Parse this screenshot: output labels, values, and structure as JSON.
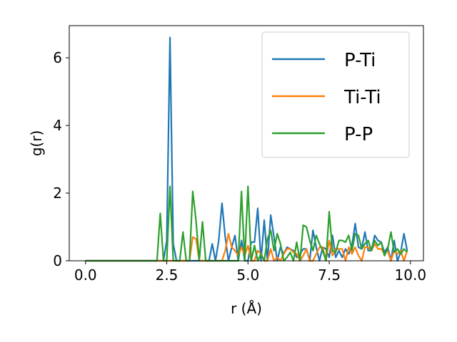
{
  "chart_data": {
    "type": "line",
    "xlabel": "r (Å)",
    "ylabel": "g(r)",
    "xlim": [
      -0.5,
      10.4
    ],
    "ylim": [
      0,
      6.95
    ],
    "xticks": [
      0.0,
      2.5,
      5.0,
      7.5,
      10.0
    ],
    "xtick_labels": [
      "0.0",
      "2.5",
      "5.0",
      "7.5",
      "10.0"
    ],
    "yticks": [
      0,
      2,
      4,
      6
    ],
    "ytick_labels": [
      "0",
      "2",
      "4",
      "6"
    ],
    "grid": false,
    "legend_position": "top-right",
    "series": [
      {
        "name": "P-Ti",
        "color": "#1f77b4",
        "x": [
          0.0,
          2.2,
          2.3,
          2.4,
          2.5,
          2.6,
          2.7,
          2.8,
          2.9,
          3.0,
          3.1,
          3.2,
          3.3,
          3.4,
          3.5,
          3.6,
          3.7,
          3.8,
          3.9,
          4.0,
          4.1,
          4.2,
          4.3,
          4.4,
          4.5,
          4.6,
          4.7,
          4.8,
          4.9,
          5.0,
          5.1,
          5.2,
          5.3,
          5.4,
          5.5,
          5.6,
          5.7,
          5.8,
          5.9,
          6.0,
          6.1,
          6.2,
          6.3,
          6.4,
          6.5,
          6.6,
          6.7,
          6.8,
          6.9,
          7.0,
          7.1,
          7.2,
          7.3,
          7.4,
          7.5,
          7.6,
          7.7,
          7.8,
          7.9,
          8.0,
          8.1,
          8.2,
          8.3,
          8.4,
          8.5,
          8.6,
          8.7,
          8.8,
          8.9,
          9.0,
          9.1,
          9.2,
          9.3,
          9.4,
          9.5,
          9.6,
          9.7,
          9.8,
          9.9
        ],
        "values": [
          0,
          0,
          0,
          0,
          0.6,
          6.6,
          0.5,
          0,
          0,
          0,
          0,
          0,
          0,
          0,
          0,
          0,
          0,
          0,
          0.5,
          0,
          0.6,
          1.7,
          0.7,
          0,
          0.4,
          0.75,
          0,
          0.6,
          0,
          0,
          0.55,
          0.55,
          1.55,
          0,
          1.2,
          0,
          1.35,
          0.7,
          0,
          0.4,
          0.2,
          0.4,
          0.35,
          0.3,
          0.1,
          0.2,
          0.35,
          0.35,
          0,
          0.9,
          0.4,
          0,
          0.4,
          0.35,
          0.1,
          0.75,
          0.1,
          0.3,
          0.1,
          0.35,
          0.2,
          0.45,
          1.1,
          0.4,
          0.35,
          0.85,
          0.3,
          0.3,
          0.75,
          0.6,
          0.55,
          0.25,
          0.4,
          0,
          0.6,
          0,
          0.25,
          0.8,
          0.3
        ]
      },
      {
        "name": "Ti-Ti",
        "color": "#ff7f0e",
        "x": [
          0.0,
          2.2,
          2.3,
          2.4,
          2.5,
          2.6,
          2.7,
          2.8,
          2.9,
          3.0,
          3.1,
          3.2,
          3.3,
          3.4,
          3.5,
          3.6,
          3.7,
          3.8,
          3.9,
          4.0,
          4.1,
          4.2,
          4.3,
          4.4,
          4.5,
          4.6,
          4.7,
          4.8,
          4.9,
          5.0,
          5.1,
          5.2,
          5.3,
          5.4,
          5.5,
          5.6,
          5.7,
          5.8,
          5.9,
          6.0,
          6.1,
          6.2,
          6.3,
          6.4,
          6.5,
          6.6,
          6.7,
          6.8,
          6.9,
          7.0,
          7.1,
          7.2,
          7.3,
          7.4,
          7.5,
          7.6,
          7.7,
          7.8,
          7.9,
          8.0,
          8.1,
          8.2,
          8.3,
          8.4,
          8.5,
          8.6,
          8.7,
          8.8,
          8.9,
          9.0,
          9.1,
          9.2,
          9.3,
          9.4,
          9.5,
          9.6,
          9.7,
          9.8,
          9.9
        ],
        "values": [
          0,
          0,
          0,
          0,
          0,
          0,
          0,
          0,
          0,
          0,
          0,
          0,
          0.7,
          0.65,
          0,
          0,
          0,
          0,
          0,
          0,
          0,
          0,
          0.3,
          0.8,
          0.4,
          0.3,
          0.15,
          0.4,
          0.15,
          0.45,
          0,
          0,
          0.3,
          0.2,
          0,
          0,
          0.35,
          0,
          0.1,
          0,
          0.2,
          0.35,
          0.35,
          0.25,
          0.2,
          0,
          0.15,
          0.35,
          0,
          0,
          0.2,
          0.4,
          0.4,
          0,
          0.6,
          0.15,
          0.35,
          0.35,
          0.35,
          0,
          0.4,
          0.2,
          0.4,
          0.15,
          0,
          0.4,
          0.4,
          0.3,
          0.5,
          0.35,
          0.35,
          0.2,
          0.3,
          0,
          0.3,
          0.2,
          0.3,
          0,
          0.3
        ]
      },
      {
        "name": "P-P",
        "color": "#2ca02c",
        "x": [
          0.0,
          2.2,
          2.3,
          2.4,
          2.5,
          2.6,
          2.7,
          2.8,
          2.9,
          3.0,
          3.1,
          3.2,
          3.3,
          3.4,
          3.5,
          3.6,
          3.7,
          3.8,
          3.9,
          4.0,
          4.1,
          4.2,
          4.3,
          4.4,
          4.5,
          4.6,
          4.7,
          4.8,
          4.9,
          5.0,
          5.1,
          5.2,
          5.3,
          5.4,
          5.5,
          5.6,
          5.7,
          5.8,
          5.9,
          6.0,
          6.1,
          6.2,
          6.3,
          6.4,
          6.5,
          6.6,
          6.7,
          6.8,
          6.9,
          7.0,
          7.1,
          7.2,
          7.3,
          7.4,
          7.5,
          7.6,
          7.7,
          7.8,
          7.9,
          8.0,
          8.1,
          8.2,
          8.3,
          8.4,
          8.5,
          8.6,
          8.7,
          8.8,
          8.9,
          9.0,
          9.1,
          9.2,
          9.3,
          9.4,
          9.5,
          9.6,
          9.7,
          9.8,
          9.9
        ],
        "values": [
          0,
          0,
          1.4,
          0,
          0,
          2.2,
          0,
          0,
          0,
          0.85,
          0,
          0,
          2.05,
          1.2,
          0,
          1.15,
          0,
          0,
          0,
          0,
          0,
          0,
          0,
          0,
          0,
          0,
          0,
          2.05,
          0,
          2.2,
          0,
          0.45,
          0,
          0.2,
          0,
          0.65,
          0.9,
          0.3,
          0.8,
          0.5,
          0,
          0.1,
          0.25,
          0,
          0.55,
          0,
          1.05,
          1.0,
          0.6,
          0.3,
          0.75,
          0.5,
          0.3,
          0,
          1.45,
          0.3,
          0.25,
          0.6,
          0.6,
          0.55,
          0.75,
          0.3,
          0.8,
          0.75,
          0.35,
          0.5,
          0.6,
          0.3,
          0.6,
          0.45,
          0.55,
          0.15,
          0.35,
          0.85,
          0.25,
          0.35,
          0.2,
          0.35,
          0.25
        ]
      }
    ]
  }
}
